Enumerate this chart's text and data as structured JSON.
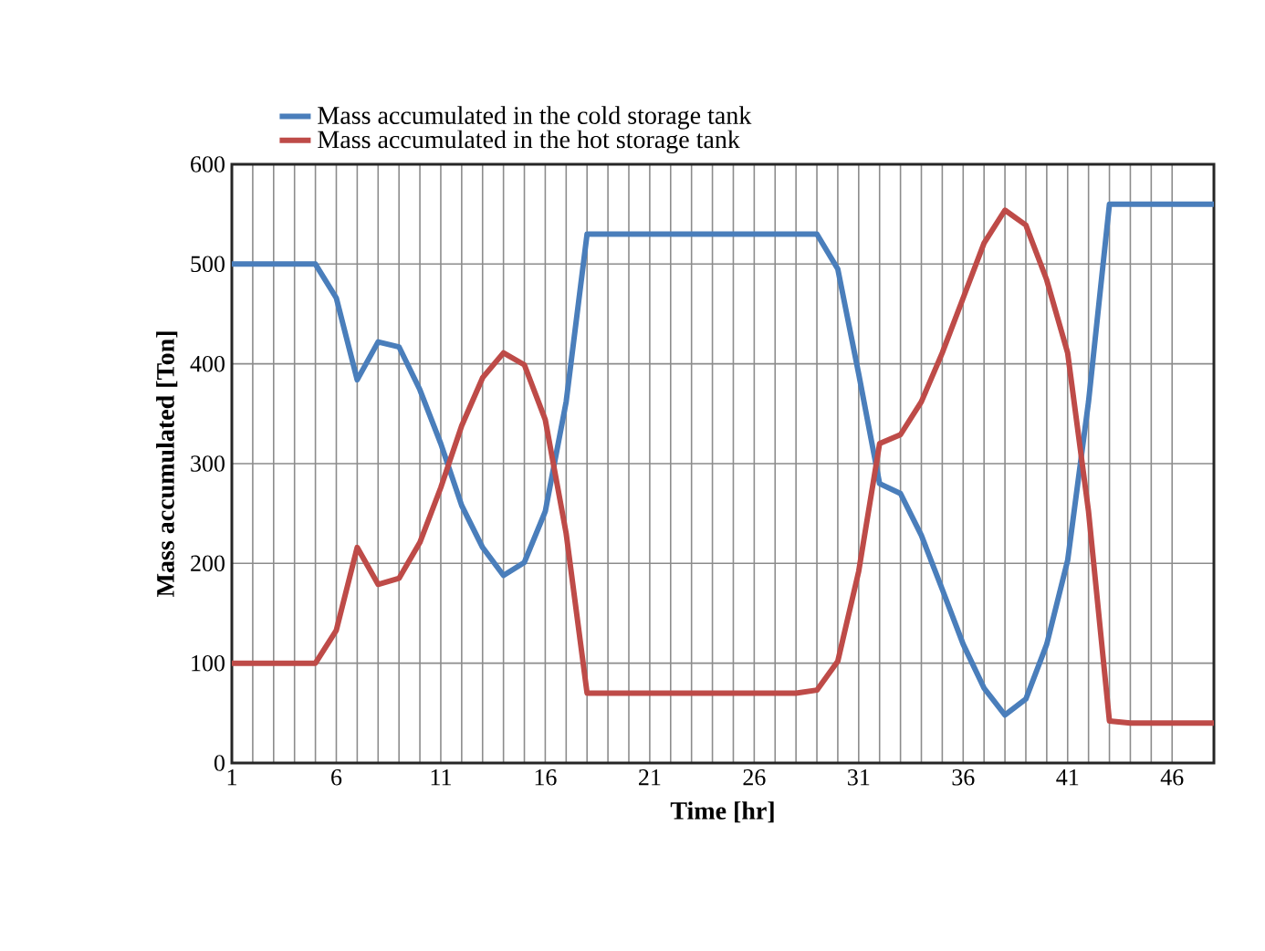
{
  "chart_data": {
    "type": "line",
    "xlabel": "Time [hr]",
    "ylabel": "Mass accumulated  [Ton]",
    "x": [
      1,
      2,
      3,
      4,
      5,
      6,
      7,
      8,
      9,
      10,
      11,
      12,
      13,
      14,
      15,
      16,
      17,
      18,
      19,
      20,
      21,
      22,
      23,
      24,
      25,
      26,
      27,
      28,
      29,
      30,
      31,
      32,
      33,
      34,
      35,
      36,
      37,
      38,
      39,
      40,
      41,
      42,
      43,
      44,
      45,
      46,
      47,
      48
    ],
    "series": [
      {
        "name": "Mass accumulated in the cold storage tank",
        "color": "#4a7ebb",
        "values": [
          500,
          500,
          500,
          500,
          500,
          466,
          384,
          422,
          417,
          374,
          320,
          258,
          216,
          188,
          201,
          252,
          362,
          530,
          530,
          530,
          530,
          530,
          530,
          530,
          530,
          530,
          530,
          530,
          530,
          495,
          390,
          280,
          270,
          228,
          174,
          119,
          75,
          48,
          64,
          119,
          203,
          362,
          560,
          560,
          560,
          560,
          560,
          560
        ]
      },
      {
        "name": "Mass accumulated in the hot storage tank",
        "color": "#be4b48",
        "values": [
          100,
          100,
          100,
          100,
          100,
          133,
          216,
          179,
          185,
          221,
          276,
          338,
          386,
          411,
          399,
          344,
          230,
          70,
          70,
          70,
          70,
          70,
          70,
          70,
          70,
          70,
          70,
          70,
          73,
          102,
          192,
          320,
          329,
          362,
          411,
          466,
          521,
          554,
          539,
          484,
          411,
          252,
          42,
          40,
          40,
          40,
          40,
          40
        ]
      }
    ],
    "xlim": [
      1,
      48
    ],
    "xticks": [
      1,
      6,
      11,
      16,
      21,
      26,
      31,
      36,
      41,
      46
    ],
    "ylim": [
      0,
      600
    ],
    "yticks": [
      0,
      100,
      200,
      300,
      400,
      500,
      600
    ],
    "grid": true,
    "legend": "top",
    "marker": "none",
    "line_style": "solid"
  }
}
